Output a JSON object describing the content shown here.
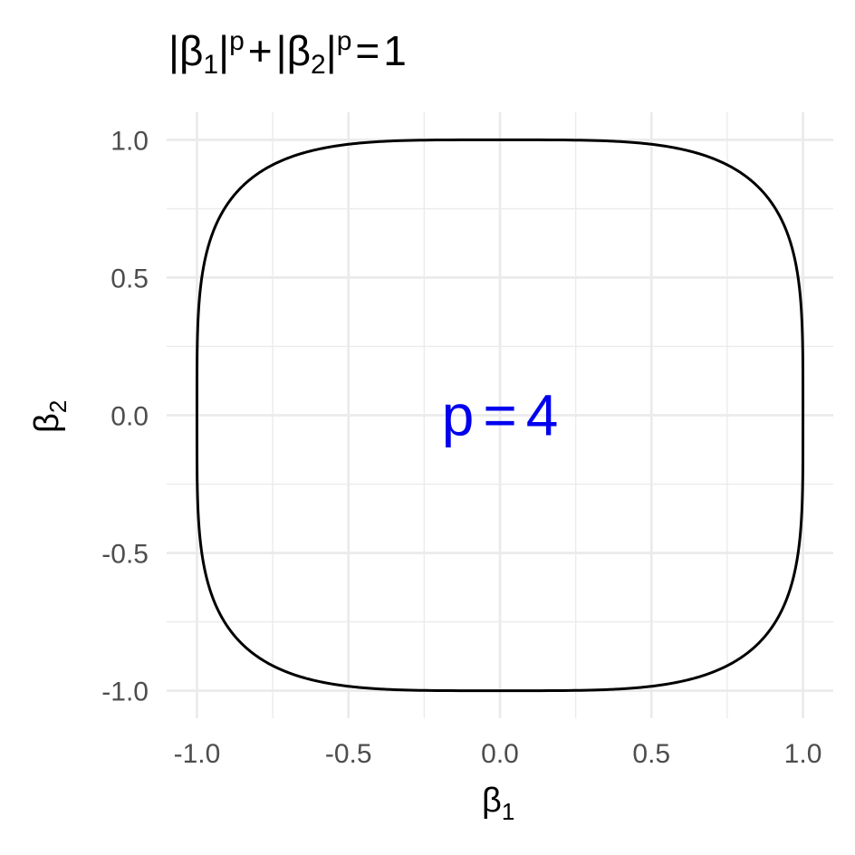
{
  "chart_data": {
    "type": "line",
    "title": {
      "beta": "β",
      "index_1": "1",
      "index_2": "2",
      "exponent": "p",
      "bar": "|",
      "plus": "+",
      "equals": "=",
      "rhs": "1"
    },
    "xlabel": {
      "symbol": "β",
      "subscript": "1"
    },
    "ylabel": {
      "symbol": "β",
      "subscript": "2"
    },
    "xlim": [
      -1.1,
      1.1
    ],
    "ylim": [
      -1.1,
      1.1
    ],
    "x_ticks": [
      -1.0,
      -0.5,
      0.0,
      0.5,
      1.0
    ],
    "y_ticks": [
      -1.0,
      -0.5,
      0.0,
      0.5,
      1.0
    ],
    "x_tick_labels": [
      "-1.0",
      "-0.5",
      "0.0",
      "0.5",
      "1.0"
    ],
    "y_tick_labels": [
      "-1.0",
      "-0.5",
      "0.0",
      "0.5",
      "1.0"
    ],
    "grid": true,
    "series": [
      {
        "color": "#000000",
        "x": [
          0,
          0.3,
          0.5,
          0.6,
          0.7,
          0.75,
          0.8,
          0.85,
          0.9,
          0.93,
          0.96,
          0.98,
          0.99,
          1.0,
          0.99,
          0.98,
          0.96,
          0.93,
          0.9,
          0.85,
          0.8,
          0.75,
          0.7,
          0.6,
          0.5,
          0.3,
          0,
          -0.3,
          -0.5,
          -0.6,
          -0.7,
          -0.75,
          -0.8,
          -0.85,
          -0.9,
          -0.93,
          -0.96,
          -0.98,
          -0.99,
          -1.0,
          -0.99,
          -0.98,
          -0.96,
          -0.93,
          -0.9,
          -0.85,
          -0.8,
          -0.75,
          -0.7,
          -0.6,
          -0.5,
          -0.3,
          0
        ],
        "y": [
          1.0,
          0.998,
          0.984,
          0.965,
          0.931,
          0.908,
          0.873,
          0.827,
          0.753,
          0.688,
          0.591,
          0.498,
          0.42,
          0,
          -0.42,
          -0.498,
          -0.591,
          -0.688,
          -0.753,
          -0.827,
          -0.873,
          -0.908,
          -0.931,
          -0.965,
          -0.984,
          -0.998,
          -1.0,
          -0.998,
          -0.984,
          -0.965,
          -0.931,
          -0.908,
          -0.873,
          -0.827,
          -0.753,
          -0.688,
          -0.591,
          -0.498,
          -0.42,
          0,
          0.42,
          0.498,
          0.591,
          0.688,
          0.753,
          0.827,
          0.873,
          0.908,
          0.931,
          0.965,
          0.984,
          0.998,
          1.0
        ]
      }
    ],
    "annotation": {
      "text_left": "p",
      "equals": "=",
      "text_right": "4",
      "x": 0.0,
      "y": 0.0,
      "color": "#0000ee"
    },
    "colors": {
      "grid": "#ebebeb",
      "curve": "#000000",
      "annotation": "#0000ee",
      "tick_text": "#4d4d4d"
    }
  }
}
